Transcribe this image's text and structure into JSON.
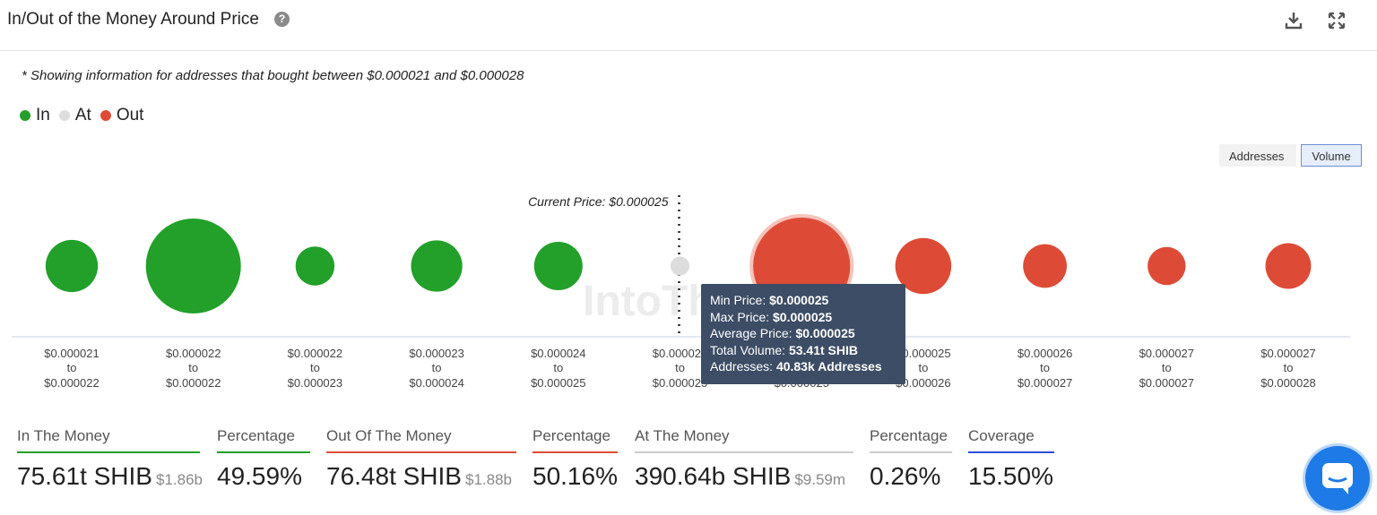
{
  "header": {
    "title": "In/Out of the Money Around Price",
    "help_icon": "question-circle-icon",
    "tools": [
      "download-icon",
      "fullscreen-icon"
    ]
  },
  "note": "* Showing information for addresses that bought between $0.000021 and $0.000028",
  "legend": [
    {
      "label": "In",
      "color": "#22a02a"
    },
    {
      "label": "At",
      "color": "#dddddd"
    },
    {
      "label": "Out",
      "color": "#dd4b36"
    }
  ],
  "toggles": {
    "addresses": "Addresses",
    "volume": "Volume",
    "active": "Volume"
  },
  "chart_data": {
    "type": "bubble",
    "current_price_label": "Current Price: $0.000025",
    "current_price_index": 5,
    "watermark": "IntoThe",
    "categories": [
      {
        "from": "$0.000021",
        "to": "$0.000022"
      },
      {
        "from": "$0.000022",
        "to": "$0.000022"
      },
      {
        "from": "$0.000022",
        "to": "$0.000023"
      },
      {
        "from": "$0.000023",
        "to": "$0.000024"
      },
      {
        "from": "$0.000024",
        "to": "$0.000025"
      },
      {
        "from": "$0.000025",
        "to": "$0.000025"
      },
      {
        "from": "$0.000025",
        "to": "$0.000025"
      },
      {
        "from": "$0.000025",
        "to": "$0.000026"
      },
      {
        "from": "$0.000026",
        "to": "$0.000027"
      },
      {
        "from": "$0.000027",
        "to": "$0.000027"
      },
      {
        "from": "$0.000027",
        "to": "$0.000028"
      }
    ],
    "relative_size": [
      0.55,
      1.0,
      0.41,
      0.54,
      0.51,
      0.2,
      1.02,
      0.59,
      0.46,
      0.4,
      0.48
    ],
    "status": [
      "in",
      "in",
      "in",
      "in",
      "in",
      "at",
      "out",
      "out",
      "out",
      "out",
      "out"
    ],
    "colors": {
      "in": "#22a02a",
      "at": "#dddddd",
      "out": "#dd4b36"
    },
    "highlight_index": 6,
    "tooltip": {
      "min_price_label": "Min Price:",
      "min_price": "$0.000025",
      "max_price_label": "Max Price:",
      "max_price": "$0.000025",
      "avg_price_label": "Average Price:",
      "avg_price": "$0.000025",
      "volume_label": "Total Volume:",
      "volume": "53.41t SHIB",
      "addresses_label": "Addresses:",
      "addresses": "40.83k Addresses"
    }
  },
  "stats": [
    {
      "label": "In The Money",
      "value": "75.61t SHIB",
      "sub": "$1.86b",
      "color": "#22a02a"
    },
    {
      "label": "Percentage",
      "value": "49.59%",
      "sub": "",
      "color": "#22a02a"
    },
    {
      "label": "Out Of The Money",
      "value": "76.48t SHIB",
      "sub": "$1.88b",
      "color": "#dd4b36"
    },
    {
      "label": "Percentage",
      "value": "50.16%",
      "sub": "",
      "color": "#dd4b36"
    },
    {
      "label": "At The Money",
      "value": "390.64b SHIB",
      "sub": "$9.59m",
      "color": "#cccccc"
    },
    {
      "label": "Percentage",
      "value": "0.26%",
      "sub": "",
      "color": "#cccccc"
    },
    {
      "label": "Coverage",
      "value": "15.50%",
      "sub": "",
      "color": "#2b4fd8"
    }
  ],
  "chat_icon": "chat-bubble-icon"
}
